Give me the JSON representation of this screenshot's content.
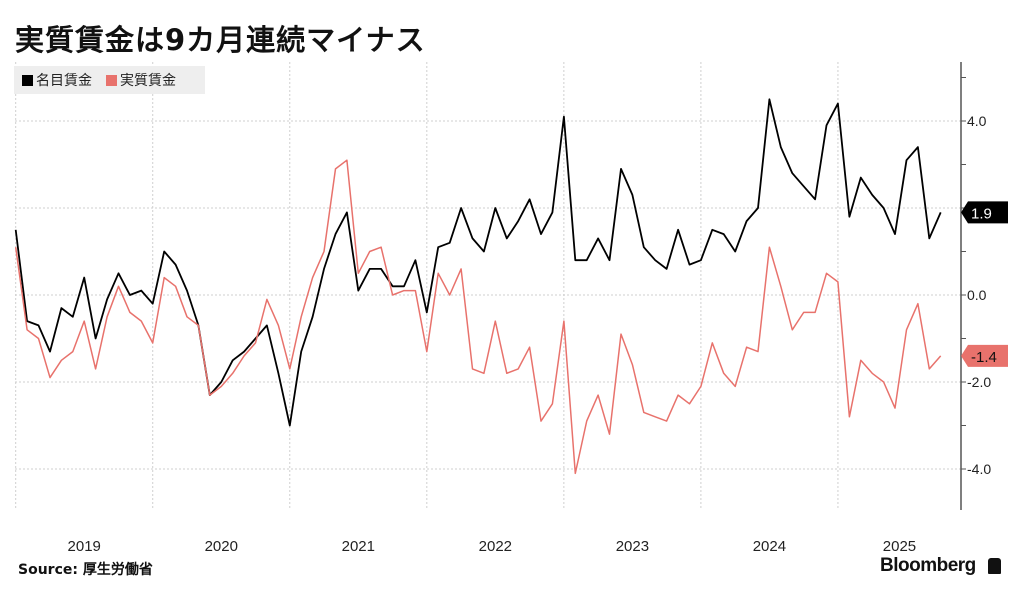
{
  "title": "実質賃金は9カ月連続マイナス",
  "source": "Source: 厚生労働省",
  "brand": "Bloomberg",
  "chart_data": {
    "type": "line",
    "title": "実質賃金は9カ月連続マイナス",
    "xlabel": "",
    "ylabel": "",
    "x_start": "2019-01",
    "x_frequency": "monthly",
    "x_tick_labels": [
      "2019",
      "2020",
      "2021",
      "2022",
      "2023",
      "2024",
      "2025"
    ],
    "y_tick_labels": [
      "4.0",
      "0.0",
      "-2.0",
      "-4.0"
    ],
    "y_gridlines": [
      4,
      2,
      0,
      -2,
      -4
    ],
    "ylim": [
      -4.9,
      5.3
    ],
    "grid": true,
    "legend_position": "top-left",
    "series": [
      {
        "name": "名目賃金",
        "color": "#000000",
        "last_label": "1.9",
        "values": [
          1.5,
          -0.6,
          -0.7,
          -1.3,
          -0.3,
          -0.5,
          0.4,
          -1.0,
          -0.1,
          0.5,
          0.0,
          0.1,
          -0.2,
          1.0,
          0.7,
          0.1,
          -0.7,
          -2.3,
          -2.0,
          -1.5,
          -1.3,
          -1.0,
          -0.7,
          -1.8,
          -3.0,
          -1.3,
          -0.5,
          0.6,
          1.4,
          1.9,
          0.1,
          0.6,
          0.6,
          0.2,
          0.2,
          0.8,
          -0.4,
          1.1,
          1.2,
          2.0,
          1.3,
          1.0,
          2.0,
          1.3,
          1.7,
          2.2,
          1.4,
          1.9,
          4.1,
          0.8,
          0.8,
          1.3,
          0.8,
          2.9,
          2.3,
          1.1,
          0.8,
          0.6,
          1.5,
          0.7,
          0.8,
          1.5,
          1.4,
          1.0,
          1.7,
          2.0,
          4.5,
          3.4,
          2.8,
          2.5,
          2.2,
          3.9,
          4.4,
          1.8,
          2.7,
          2.3,
          2.0,
          1.4,
          3.1,
          3.4,
          1.3,
          1.9
        ]
      },
      {
        "name": "実質賃金",
        "color": "#e8726c",
        "last_label": "-1.4",
        "values": [
          1.1,
          -0.8,
          -1.0,
          -1.9,
          -1.5,
          -1.3,
          -0.6,
          -1.7,
          -0.5,
          0.2,
          -0.4,
          -0.6,
          -1.1,
          0.4,
          0.2,
          -0.5,
          -0.7,
          -2.3,
          -2.1,
          -1.8,
          -1.4,
          -1.1,
          -0.1,
          -0.7,
          -1.7,
          -0.5,
          0.4,
          1.0,
          2.9,
          3.1,
          0.5,
          1.0,
          1.1,
          0.0,
          0.1,
          0.1,
          -1.3,
          0.5,
          0.0,
          0.6,
          -1.7,
          -1.8,
          -0.6,
          -1.8,
          -1.7,
          -1.2,
          -2.9,
          -2.5,
          -0.6,
          -4.1,
          -2.9,
          -2.3,
          -3.2,
          -0.9,
          -1.6,
          -2.7,
          -2.8,
          -2.9,
          -2.3,
          -2.5,
          -2.1,
          -1.1,
          -1.8,
          -2.1,
          -1.2,
          -1.3,
          1.1,
          0.2,
          -0.8,
          -0.4,
          -0.4,
          0.5,
          0.3,
          -2.8,
          -1.5,
          -1.8,
          -2.0,
          -2.6,
          -0.8,
          -0.2,
          -1.7,
          -1.4
        ]
      }
    ]
  }
}
